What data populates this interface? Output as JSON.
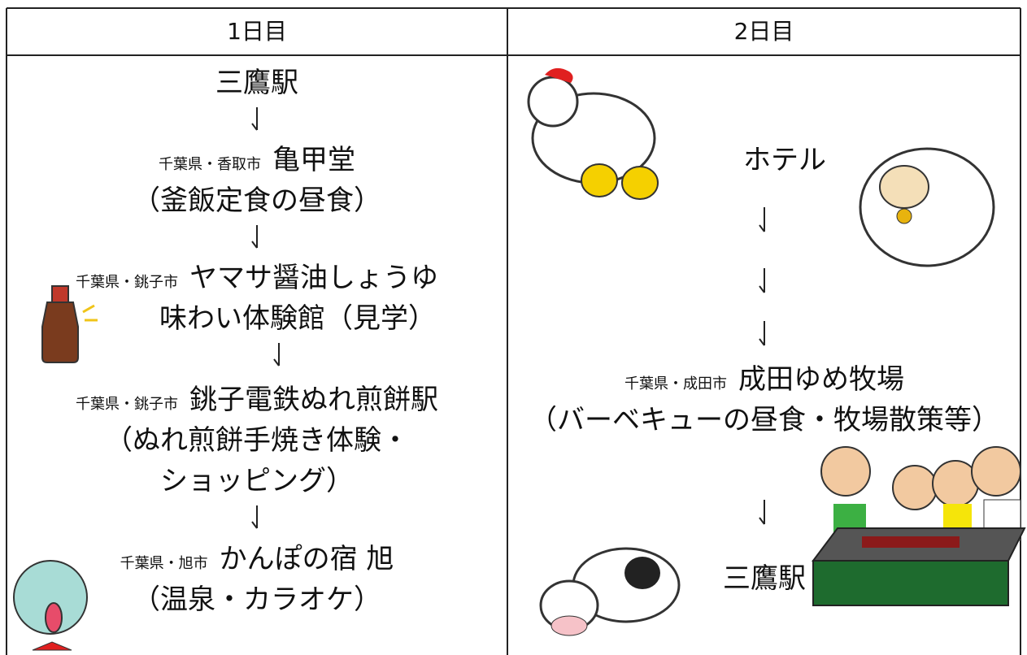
{
  "table": {
    "headers": [
      "1日目",
      "2日目"
    ],
    "columns": [
      [
        {
          "text": "三鷹駅"
        },
        {
          "prefix": "千葉県・香取市",
          "text": "亀甲堂"
        },
        {
          "text": "（釜飯定食の昼食）"
        },
        {
          "prefix": "千葉県・銚子市",
          "text": "ヤマサ醤油しょうゆ"
        },
        {
          "text": "味わい体験館（見学）"
        },
        {
          "prefix": "千葉県・銚子市",
          "text": "銚子電鉄ぬれ煎餅駅"
        },
        {
          "text": "（ぬれ煎餅手焼き体験・"
        },
        {
          "text": "ショッピング）"
        },
        {
          "prefix": "千葉県・旭市",
          "text": "かんぽの宿 旭"
        },
        {
          "text": "（温泉・カラオケ）"
        }
      ],
      [
        {
          "text": "ホテル"
        },
        {
          "prefix": "千葉県・成田市",
          "text": "成田ゆめ牧場"
        },
        {
          "text": "（バーベキューの昼食・牧場散策等）"
        },
        {
          "text": "三鷹駅"
        }
      ]
    ]
  }
}
